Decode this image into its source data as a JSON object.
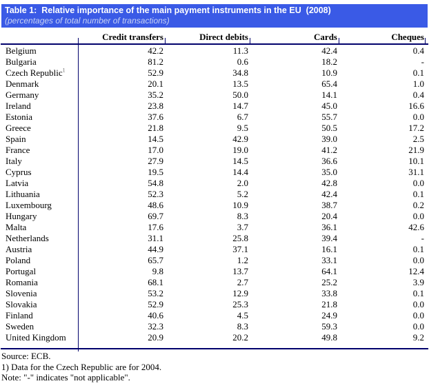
{
  "title_band": {
    "title": "Table 1:  Relative importance of the main payment instruments in the EU  (2008)",
    "subtitle": "(percentages of total number of transactions)"
  },
  "table": {
    "columns": [
      "Credit transfers",
      "Direct debits",
      "Cards",
      "Cheques"
    ],
    "rows": [
      {
        "country": "Belgium",
        "values": [
          "42.2",
          "11.3",
          "42.4",
          "0.4"
        ]
      },
      {
        "country": "Bulgaria",
        "values": [
          "81.2",
          "0.6",
          "18.2",
          "-"
        ]
      },
      {
        "country": "Czech Republic",
        "note_ref": "1",
        "values": [
          "52.9",
          "34.8",
          "10.9",
          "0.1"
        ]
      },
      {
        "country": "Denmark",
        "values": [
          "20.1",
          "13.5",
          "65.4",
          "1.0"
        ]
      },
      {
        "country": "Germany",
        "values": [
          "35.2",
          "50.0",
          "14.1",
          "0.4"
        ]
      },
      {
        "country": "Ireland",
        "values": [
          "23.8",
          "14.7",
          "45.0",
          "16.6"
        ]
      },
      {
        "country": "Estonia",
        "values": [
          "37.6",
          "6.7",
          "55.7",
          "0.0"
        ]
      },
      {
        "country": "Greece",
        "values": [
          "21.8",
          "9.5",
          "50.5",
          "17.2"
        ]
      },
      {
        "country": "Spain",
        "values": [
          "14.5",
          "42.9",
          "39.0",
          "2.5"
        ]
      },
      {
        "country": "France",
        "values": [
          "17.0",
          "19.0",
          "41.2",
          "21.9"
        ]
      },
      {
        "country": "Italy",
        "values": [
          "27.9",
          "14.5",
          "36.6",
          "10.1"
        ]
      },
      {
        "country": "Cyprus",
        "values": [
          "19.5",
          "14.4",
          "35.0",
          "31.1"
        ]
      },
      {
        "country": "Latvia",
        "values": [
          "54.8",
          "2.0",
          "42.8",
          "0.0"
        ]
      },
      {
        "country": "Lithuania",
        "values": [
          "52.3",
          "5.2",
          "42.4",
          "0.1"
        ]
      },
      {
        "country": "Luxembourg",
        "values": [
          "48.6",
          "10.9",
          "38.7",
          "0.2"
        ]
      },
      {
        "country": "Hungary",
        "values": [
          "69.7",
          "8.3",
          "20.4",
          "0.0"
        ]
      },
      {
        "country": "Malta",
        "values": [
          "17.6",
          "3.7",
          "36.1",
          "42.6"
        ]
      },
      {
        "country": "Netherlands",
        "values": [
          "31.1",
          "25.8",
          "39.4",
          "-"
        ]
      },
      {
        "country": "Austria",
        "values": [
          "44.9",
          "37.1",
          "16.1",
          "0.1"
        ]
      },
      {
        "country": "Poland",
        "values": [
          "65.7",
          "1.2",
          "33.1",
          "0.0"
        ]
      },
      {
        "country": "Portugal",
        "values": [
          "9.8",
          "13.7",
          "64.1",
          "12.4"
        ]
      },
      {
        "country": "Romania",
        "values": [
          "68.1",
          "2.7",
          "25.2",
          "3.9"
        ]
      },
      {
        "country": "Slovenia",
        "values": [
          "53.2",
          "12.9",
          "33.8",
          "0.1"
        ]
      },
      {
        "country": "Slovakia",
        "values": [
          "52.9",
          "25.3",
          "21.8",
          "0.0"
        ]
      },
      {
        "country": "Finland",
        "values": [
          "40.6",
          "4.5",
          "24.9",
          "0.0"
        ]
      },
      {
        "country": "Sweden",
        "values": [
          "32.3",
          "8.3",
          "59.3",
          "0.0"
        ]
      },
      {
        "country": "United Kingdom",
        "values": [
          "20.9",
          "20.2",
          "49.8",
          "9.2"
        ]
      }
    ]
  },
  "footer": {
    "source": "Source: ECB.",
    "footnote": "1) Data for the Czech Republic are for 2004.",
    "note": "Note: \"-\" indicates \"not applicable\"."
  },
  "colors": {
    "accent": "#3A5AE6",
    "rule": "#00006B",
    "title_text": "#FFFFFF",
    "subtitle_text": "#C9D3F5"
  }
}
